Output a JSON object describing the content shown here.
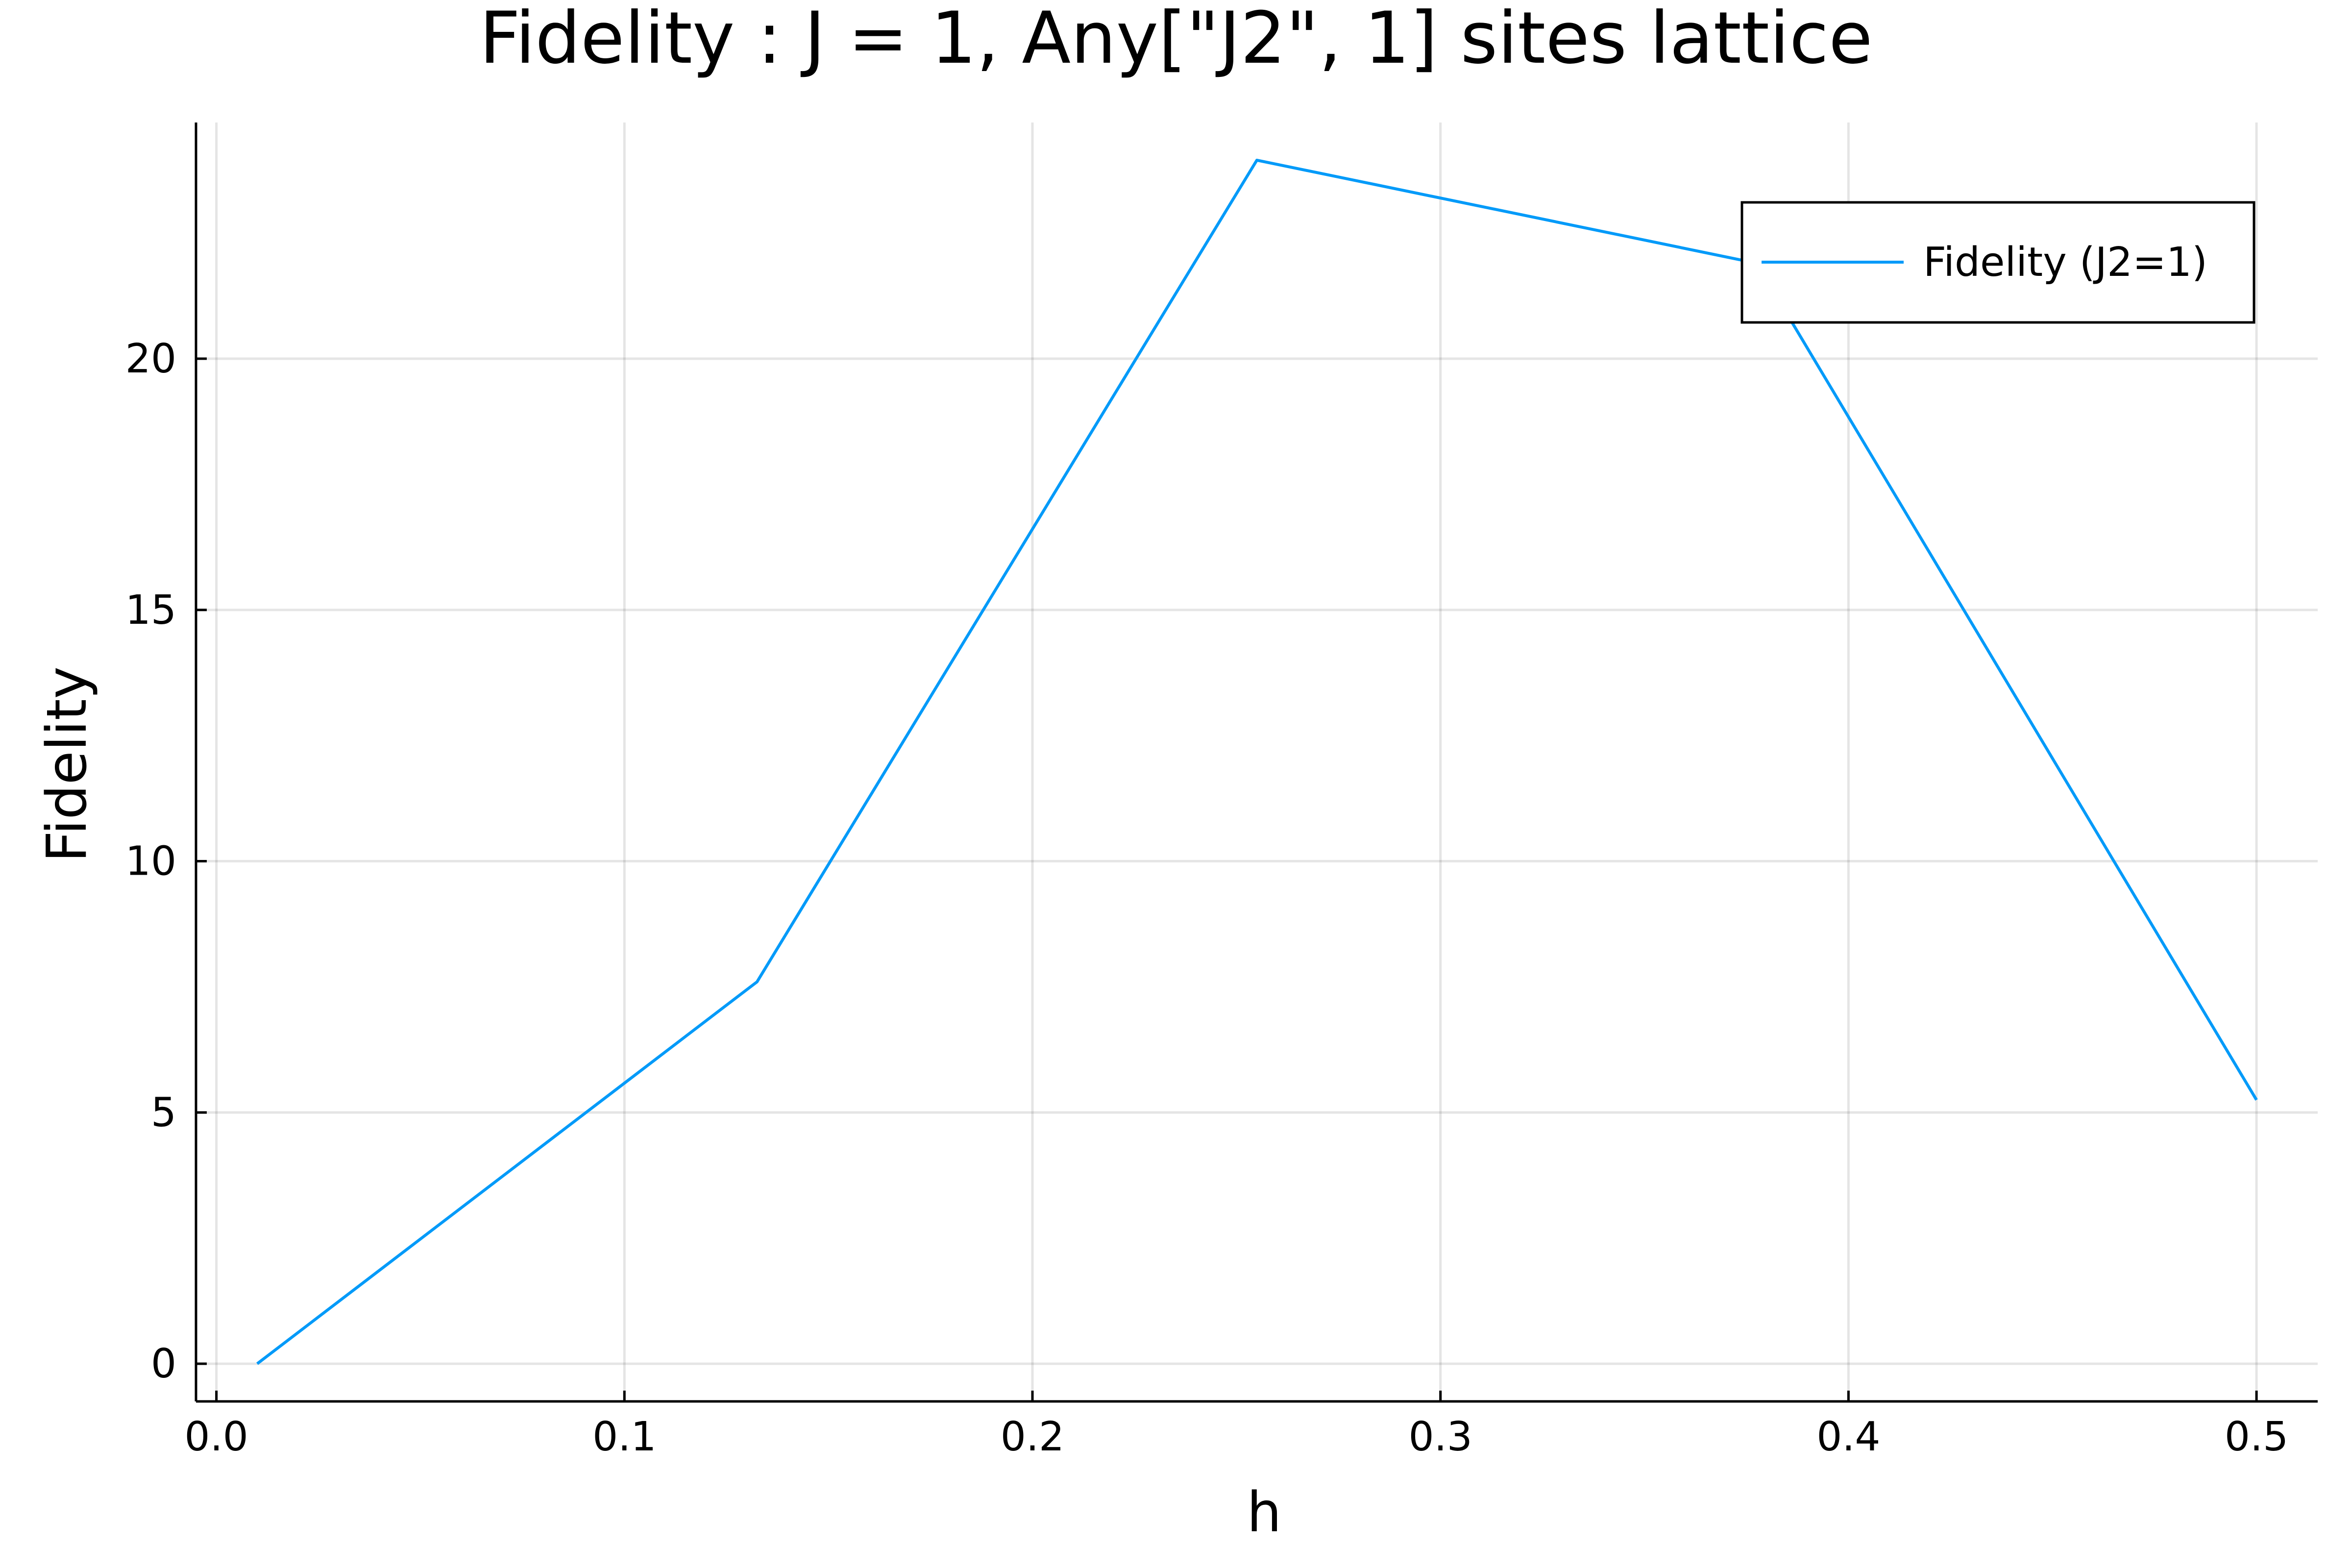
{
  "chart_data": {
    "type": "line",
    "title": "Fidelity : J = 1, Any[\"J2\", 1] sites lattice",
    "xlabel": "h",
    "ylabel": "Fidelity",
    "xlim": [
      -0.005,
      0.515
    ],
    "ylim": [
      -0.75,
      24.7
    ],
    "xticks": [
      0.0,
      0.1,
      0.2,
      0.3,
      0.4,
      0.5
    ],
    "xtick_labels": [
      "0.0",
      "0.1",
      "0.2",
      "0.3",
      "0.4",
      "0.5"
    ],
    "yticks": [
      0,
      5,
      10,
      15,
      20
    ],
    "ytick_labels": [
      "0",
      "5",
      "10",
      "15",
      "20"
    ],
    "grid": true,
    "legend": "top-right",
    "series": [
      {
        "name": "Fidelity (J2=1)",
        "color": "#009af9",
        "x": [
          0.01,
          0.1325,
          0.255,
          0.3775,
          0.5
        ],
        "y": [
          0.0,
          7.6,
          23.95,
          21.9,
          5.25
        ]
      }
    ]
  }
}
